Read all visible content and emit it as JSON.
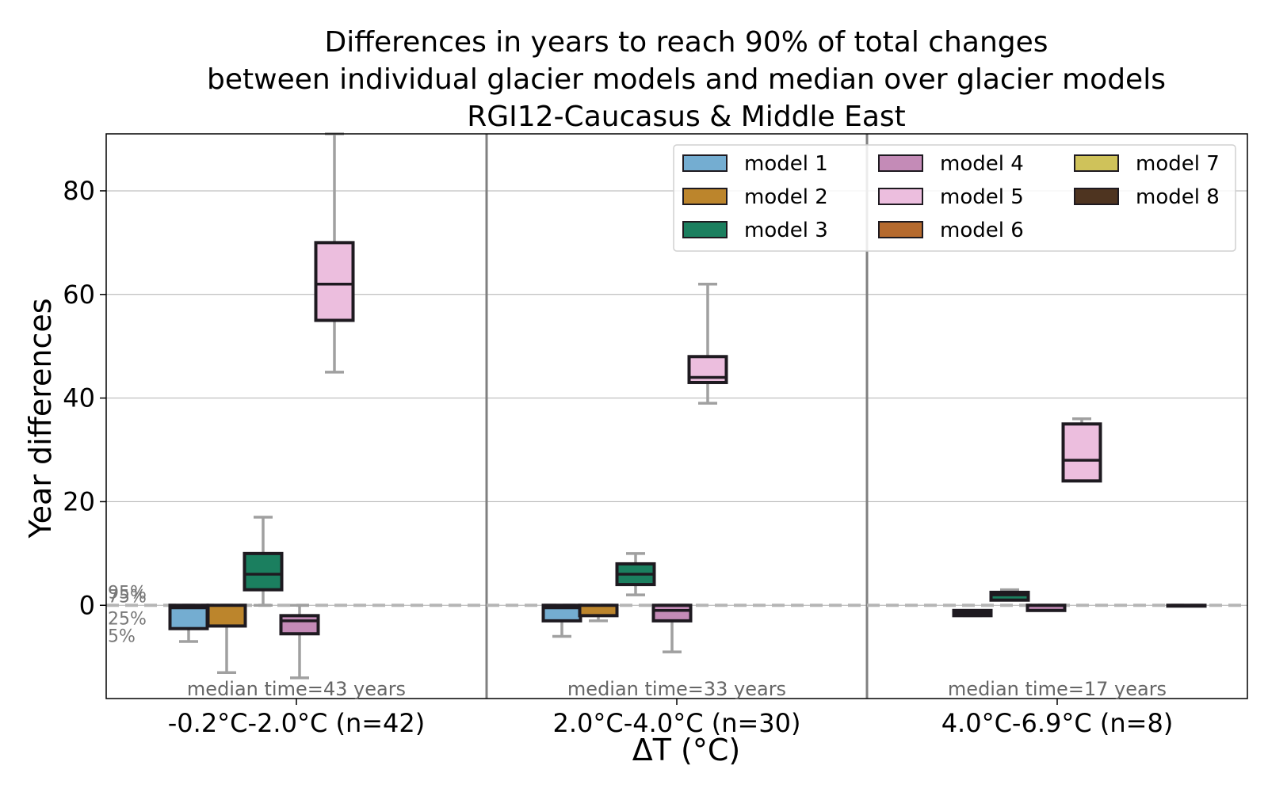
{
  "chart_data": {
    "type": "boxplot",
    "title": [
      "Differences in years to reach 90% of total changes",
      "between individual glacier models and median over glacier models",
      "RGI12-Caucasus & Middle East"
    ],
    "xlabel": "ΔT (°C)",
    "ylabel": "Year differences",
    "ylim": [
      -18,
      91
    ],
    "yticks": [
      0,
      20,
      40,
      60,
      80
    ],
    "grid": true,
    "legend_position": "top-right",
    "reference_line": 0,
    "percentile_labels": [
      "95%",
      "75%",
      "25%",
      "5%"
    ],
    "groups": [
      {
        "label": "-0.2°C-2.0°C (n=42)",
        "annotation": "median time=43 years"
      },
      {
        "label": "2.0°C-4.0°C (n=30)",
        "annotation": "median time=33 years"
      },
      {
        "label": "4.0°C-6.9°C (n=8)",
        "annotation": "median time=17 years"
      }
    ],
    "series": [
      {
        "name": "model 1",
        "color": "#74add1",
        "boxes": [
          {
            "p5": -7,
            "q1": -4.5,
            "median": -0.5,
            "q3": 0,
            "p95": 0
          },
          {
            "p5": -6,
            "q1": -3,
            "median": -0.5,
            "q3": 0,
            "p95": 0
          },
          null
        ]
      },
      {
        "name": "model 2",
        "color": "#bc852c",
        "boxes": [
          {
            "p5": -13,
            "q1": -4,
            "median": 0,
            "q3": 0,
            "p95": 0
          },
          {
            "p5": -3,
            "q1": -2,
            "median": 0,
            "q3": 0,
            "p95": 0
          },
          {
            "p5": -2,
            "q1": -2,
            "median": -1.5,
            "q3": -1,
            "p95": -1
          }
        ]
      },
      {
        "name": "model 3",
        "color": "#1b7f5f",
        "boxes": [
          {
            "p5": 0,
            "q1": 3,
            "median": 6,
            "q3": 10,
            "p95": 17
          },
          {
            "p5": 2,
            "q1": 4,
            "median": 6,
            "q3": 8,
            "p95": 10
          },
          {
            "p5": 1,
            "q1": 1,
            "median": 2,
            "q3": 2.5,
            "p95": 3
          }
        ]
      },
      {
        "name": "model 4",
        "color": "#c48bb7",
        "boxes": [
          {
            "p5": -14,
            "q1": -5.5,
            "median": -3,
            "q3": -2,
            "p95": 0
          },
          {
            "p5": -9,
            "q1": -3,
            "median": -1,
            "q3": 0,
            "p95": 0
          },
          {
            "p5": -1,
            "q1": -1,
            "median": 0,
            "q3": 0,
            "p95": 0
          }
        ]
      },
      {
        "name": "model 5",
        "color": "#ecbede",
        "boxes": [
          {
            "p5": 45,
            "q1": 55,
            "median": 62,
            "q3": 70,
            "p95": 91
          },
          {
            "p5": 39,
            "q1": 43,
            "median": 44,
            "q3": 48,
            "p95": 62
          },
          {
            "p5": 24,
            "q1": 24,
            "median": 28,
            "q3": 35,
            "p95": 36
          }
        ]
      },
      {
        "name": "model 6",
        "color": "#b56a2e",
        "boxes": [
          null,
          null,
          null
        ]
      },
      {
        "name": "model 7",
        "color": "#cfc25a",
        "boxes": [
          null,
          null,
          null
        ]
      },
      {
        "name": "model 8",
        "color": "#4e3420",
        "boxes": [
          null,
          null,
          {
            "p5": 0,
            "q1": 0,
            "median": 0,
            "q3": 0,
            "p95": 0
          }
        ]
      }
    ]
  }
}
